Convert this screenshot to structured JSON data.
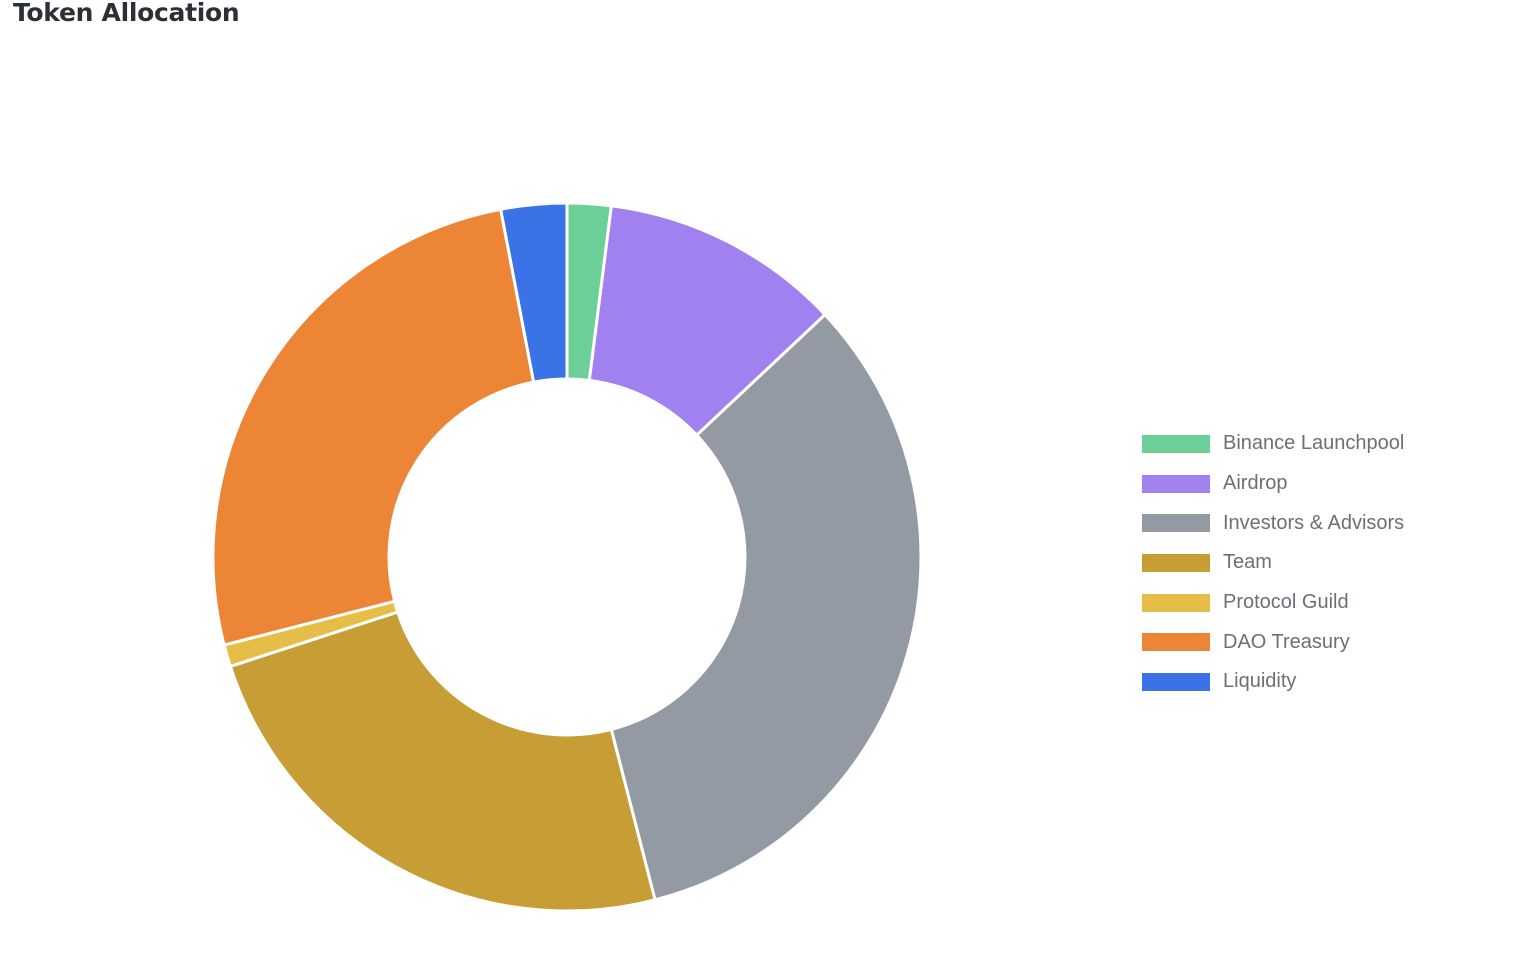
{
  "title": "Token Allocation",
  "chart_data": {
    "type": "pie",
    "variant": "doughnut",
    "title": "Token Allocation",
    "legend_position": "right",
    "slices": [
      {
        "label": "Binance Launchpool",
        "value": 2.0,
        "color": "#6ccf97"
      },
      {
        "label": "Airdrop",
        "value": 11.0,
        "color": "#a181ef"
      },
      {
        "label": "Investors & Advisors",
        "value": 33.0,
        "color": "#949aa3"
      },
      {
        "label": "Team",
        "value": 24.0,
        "color": "#c79e36"
      },
      {
        "label": "Protocol Guild",
        "value": 1.0,
        "color": "#e6bd46"
      },
      {
        "label": "DAO Treasury",
        "value": 26.0,
        "color": "#ed8536"
      },
      {
        "label": "Liquidity",
        "value": 3.0,
        "color": "#3a73e5"
      }
    ]
  }
}
